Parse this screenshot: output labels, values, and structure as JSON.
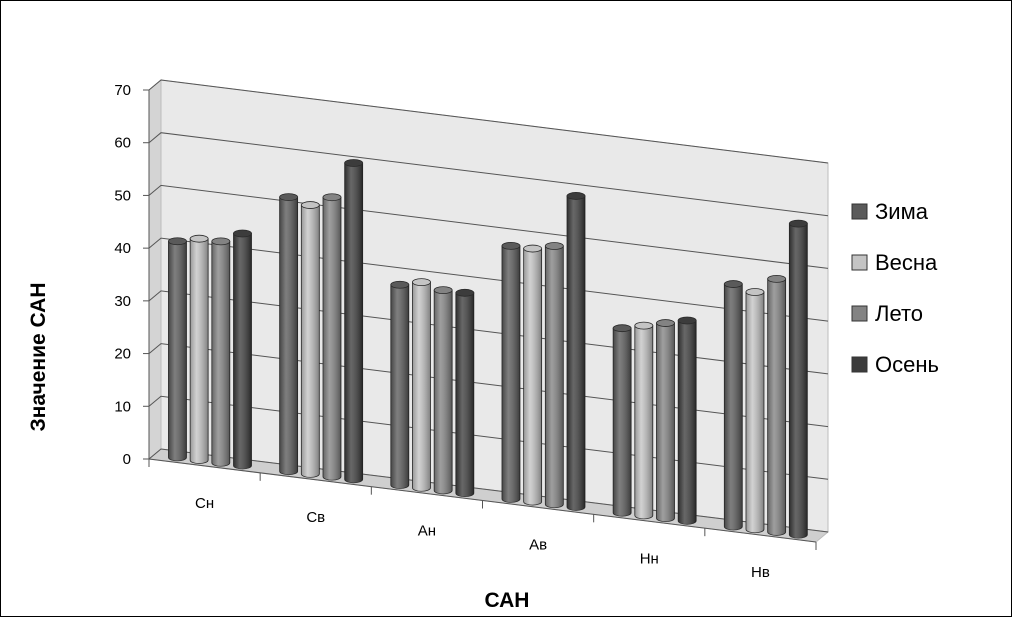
{
  "chart_data": {
    "type": "bar",
    "variant": "3d-clustered-column",
    "title": "",
    "xlabel": "САН",
    "ylabel": "Значение САН",
    "ylim": [
      0,
      70
    ],
    "yticks": [
      0,
      10,
      20,
      30,
      40,
      50,
      60,
      70
    ],
    "grid": true,
    "legend_position": "right",
    "categories": [
      "Сн",
      "Св",
      "Ан",
      "Ав",
      "Нн",
      "Нв"
    ],
    "series": [
      {
        "name": "Зима",
        "color": "#5a5a5a",
        "values": [
          41,
          52,
          38,
          48,
          35,
          46
        ]
      },
      {
        "name": "Весна",
        "color": "#c4c4c4",
        "values": [
          42,
          51,
          39,
          48,
          36,
          45
        ]
      },
      {
        "name": "Лето",
        "color": "#838383",
        "values": [
          42,
          53,
          38,
          49,
          37,
          48
        ]
      },
      {
        "name": "Осень",
        "color": "#3c3c3c",
        "values": [
          44,
          60,
          38,
          59,
          38,
          59
        ]
      }
    ]
  }
}
